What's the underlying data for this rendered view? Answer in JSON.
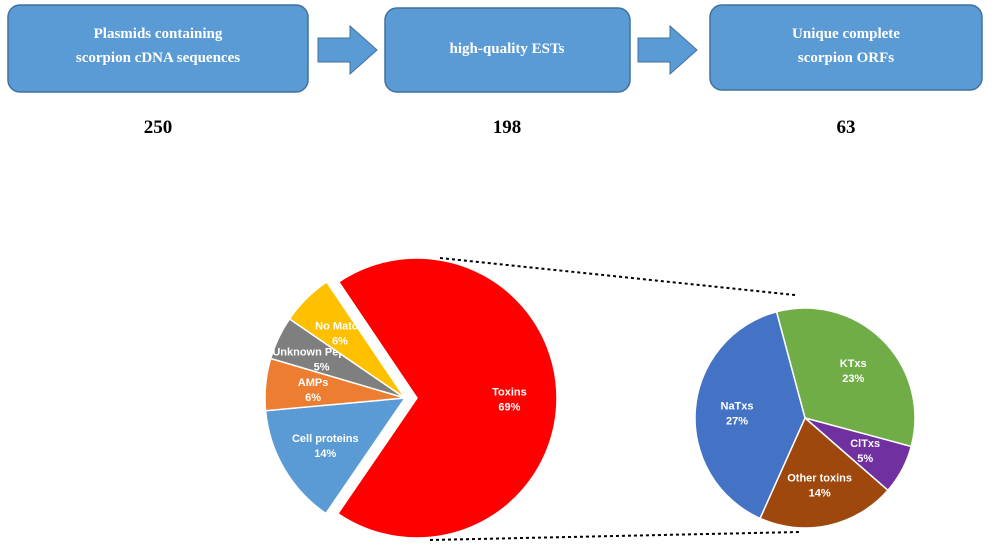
{
  "flow": {
    "nodes": [
      {
        "label": "Plasmids containing scorpion cDNA sequences",
        "count": 250
      },
      {
        "label": "high-quality ESTs",
        "count": 198
      },
      {
        "label": "Unique complete scorpion ORFs",
        "count": 63
      }
    ]
  },
  "chart_data": [
    {
      "type": "pie",
      "categories": [
        "Toxins",
        "Cell proteins",
        "AMPs",
        "Unknown Peptides",
        "No Match"
      ],
      "values": [
        69,
        14,
        6,
        5,
        6
      ],
      "value_labels": [
        "69%",
        "14%",
        "6%",
        "5%",
        "6%"
      ],
      "colors": [
        "#ff0000",
        "#5b9bd5",
        "#ed7d31",
        "#7f7f7f",
        "#ffc000"
      ]
    },
    {
      "type": "pie",
      "categories": [
        "KTxs",
        "ClTxs",
        "Other toxins",
        "NaTxs"
      ],
      "values": [
        23,
        5,
        14,
        27
      ],
      "value_labels": [
        "23%",
        "5%",
        "14%",
        "27%"
      ],
      "colors": [
        "#70ad47",
        "#7030a0",
        "#9e480e",
        "#4472c4"
      ]
    }
  ]
}
